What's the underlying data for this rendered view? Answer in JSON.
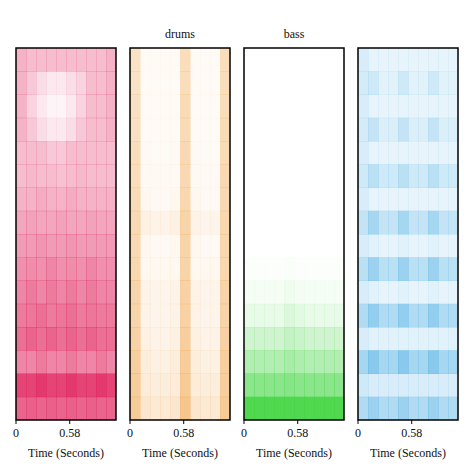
{
  "chart_data": [
    {
      "type": "heatmap",
      "color": "#e0245e",
      "xlabel": "Time (Seconds)",
      "xlim": [
        0,
        1.08
      ],
      "xticks": [
        0,
        0.58
      ],
      "tick_labels": "x",
      "cells": [
        [
          0.35,
          0.3,
          0.3,
          0.3,
          0.3,
          0.3,
          0.3,
          0.3,
          0.3,
          0.35
        ],
        [
          0.35,
          0.25,
          0.15,
          0.1,
          0.1,
          0.15,
          0.2,
          0.3,
          0.3,
          0.35
        ],
        [
          0.35,
          0.2,
          0.1,
          0.05,
          0.05,
          0.1,
          0.2,
          0.3,
          0.3,
          0.35
        ],
        [
          0.35,
          0.25,
          0.15,
          0.1,
          0.1,
          0.15,
          0.25,
          0.3,
          0.3,
          0.35
        ],
        [
          0.3,
          0.3,
          0.3,
          0.25,
          0.25,
          0.3,
          0.3,
          0.3,
          0.3,
          0.3
        ],
        [
          0.3,
          0.32,
          0.3,
          0.3,
          0.28,
          0.3,
          0.32,
          0.3,
          0.3,
          0.3
        ],
        [
          0.35,
          0.35,
          0.38,
          0.35,
          0.35,
          0.38,
          0.35,
          0.35,
          0.35,
          0.35
        ],
        [
          0.4,
          0.42,
          0.4,
          0.4,
          0.42,
          0.4,
          0.4,
          0.42,
          0.4,
          0.4
        ],
        [
          0.45,
          0.45,
          0.48,
          0.45,
          0.45,
          0.48,
          0.45,
          0.45,
          0.45,
          0.45
        ],
        [
          0.5,
          0.52,
          0.5,
          0.55,
          0.5,
          0.52,
          0.5,
          0.55,
          0.5,
          0.5
        ],
        [
          0.55,
          0.6,
          0.55,
          0.6,
          0.55,
          0.6,
          0.55,
          0.6,
          0.55,
          0.55
        ],
        [
          0.6,
          0.62,
          0.65,
          0.6,
          0.62,
          0.65,
          0.6,
          0.62,
          0.6,
          0.6
        ],
        [
          0.65,
          0.7,
          0.65,
          0.7,
          0.65,
          0.7,
          0.65,
          0.7,
          0.65,
          0.65
        ],
        [
          0.55,
          0.55,
          0.6,
          0.55,
          0.55,
          0.6,
          0.55,
          0.55,
          0.6,
          0.55
        ],
        [
          0.85,
          0.85,
          0.9,
          0.85,
          0.85,
          0.9,
          0.85,
          0.85,
          0.9,
          0.85
        ],
        [
          0.7,
          0.72,
          0.7,
          0.72,
          0.7,
          0.72,
          0.7,
          0.72,
          0.7,
          0.7
        ]
      ]
    },
    {
      "type": "heatmap",
      "title": "drums",
      "color": "#f0a040",
      "xlabel": "Time (Seconds)",
      "xlim": [
        0,
        1.08
      ],
      "xticks": [
        0,
        0.58
      ],
      "tick_labels": "x",
      "cells": [
        [
          0.3,
          0.05,
          0.05,
          0.05,
          0.05,
          0.35,
          0.05,
          0.05,
          0.05,
          0.35
        ],
        [
          0.3,
          0.05,
          0.05,
          0.05,
          0.05,
          0.35,
          0.05,
          0.05,
          0.05,
          0.35
        ],
        [
          0.32,
          0.05,
          0.05,
          0.05,
          0.05,
          0.38,
          0.05,
          0.05,
          0.05,
          0.35
        ],
        [
          0.32,
          0.05,
          0.05,
          0.05,
          0.05,
          0.38,
          0.05,
          0.05,
          0.05,
          0.38
        ],
        [
          0.35,
          0.06,
          0.05,
          0.05,
          0.06,
          0.4,
          0.06,
          0.05,
          0.05,
          0.38
        ],
        [
          0.35,
          0.06,
          0.06,
          0.06,
          0.06,
          0.4,
          0.06,
          0.06,
          0.06,
          0.4
        ],
        [
          0.38,
          0.08,
          0.06,
          0.06,
          0.08,
          0.42,
          0.08,
          0.06,
          0.06,
          0.4
        ],
        [
          0.4,
          0.15,
          0.12,
          0.12,
          0.15,
          0.45,
          0.12,
          0.1,
          0.1,
          0.42
        ],
        [
          0.4,
          0.08,
          0.06,
          0.06,
          0.08,
          0.45,
          0.08,
          0.06,
          0.06,
          0.42
        ],
        [
          0.42,
          0.08,
          0.08,
          0.08,
          0.08,
          0.45,
          0.08,
          0.08,
          0.08,
          0.42
        ],
        [
          0.45,
          0.12,
          0.1,
          0.1,
          0.12,
          0.48,
          0.12,
          0.1,
          0.1,
          0.45
        ],
        [
          0.45,
          0.12,
          0.1,
          0.1,
          0.12,
          0.48,
          0.12,
          0.1,
          0.1,
          0.45
        ],
        [
          0.48,
          0.15,
          0.12,
          0.12,
          0.15,
          0.5,
          0.15,
          0.12,
          0.12,
          0.48
        ],
        [
          0.5,
          0.18,
          0.15,
          0.15,
          0.18,
          0.52,
          0.18,
          0.15,
          0.15,
          0.5
        ],
        [
          0.52,
          0.2,
          0.18,
          0.18,
          0.2,
          0.55,
          0.2,
          0.18,
          0.18,
          0.5
        ],
        [
          0.55,
          0.25,
          0.22,
          0.22,
          0.25,
          0.6,
          0.25,
          0.22,
          0.22,
          0.55
        ]
      ]
    },
    {
      "type": "heatmap",
      "title": "bass",
      "color": "#3ed43e",
      "xlabel": "Time (Seconds)",
      "xlim": [
        0,
        1.08
      ],
      "xticks": [
        0,
        0.58
      ],
      "tick_labels": "x",
      "cells": [
        [
          0,
          0,
          0,
          0,
          0,
          0,
          0,
          0,
          0,
          0
        ],
        [
          0,
          0,
          0,
          0,
          0,
          0,
          0,
          0,
          0,
          0
        ],
        [
          0,
          0,
          0,
          0,
          0,
          0,
          0,
          0,
          0,
          0
        ],
        [
          0,
          0,
          0,
          0,
          0,
          0,
          0,
          0,
          0,
          0
        ],
        [
          0,
          0,
          0,
          0,
          0,
          0,
          0,
          0,
          0,
          0
        ],
        [
          0,
          0,
          0,
          0,
          0,
          0,
          0,
          0,
          0,
          0
        ],
        [
          0,
          0,
          0,
          0,
          0,
          0,
          0,
          0,
          0,
          0
        ],
        [
          0,
          0,
          0,
          0,
          0,
          0,
          0,
          0,
          0,
          0
        ],
        [
          0,
          0,
          0,
          0,
          0,
          0,
          0,
          0,
          0,
          0
        ],
        [
          0.02,
          0.02,
          0.02,
          0.02,
          0.03,
          0.02,
          0.02,
          0.02,
          0.02,
          0.02
        ],
        [
          0.05,
          0.05,
          0.05,
          0.05,
          0.08,
          0.06,
          0.05,
          0.05,
          0.05,
          0.05
        ],
        [
          0.12,
          0.12,
          0.12,
          0.12,
          0.18,
          0.15,
          0.12,
          0.12,
          0.12,
          0.12
        ],
        [
          0.25,
          0.25,
          0.25,
          0.25,
          0.3,
          0.28,
          0.25,
          0.25,
          0.25,
          0.25
        ],
        [
          0.4,
          0.4,
          0.4,
          0.4,
          0.45,
          0.42,
          0.4,
          0.4,
          0.4,
          0.4
        ],
        [
          0.6,
          0.6,
          0.6,
          0.6,
          0.62,
          0.6,
          0.6,
          0.6,
          0.6,
          0.6
        ],
        [
          0.9,
          0.9,
          0.9,
          0.9,
          0.9,
          0.9,
          0.9,
          0.9,
          0.9,
          0.9
        ]
      ]
    },
    {
      "type": "heatmap",
      "color": "#3aa6e0",
      "xlabel": "Time (Seconds)",
      "xlim": [
        0,
        1.08
      ],
      "xticks": [
        0,
        0.58
      ],
      "tick_labels": "x",
      "cells": [
        [
          0.2,
          0.12,
          0.12,
          0.12,
          0.12,
          0.12,
          0.12,
          0.12,
          0.12,
          0.12
        ],
        [
          0.22,
          0.25,
          0.15,
          0.15,
          0.25,
          0.15,
          0.15,
          0.25,
          0.15,
          0.15
        ],
        [
          0.2,
          0.12,
          0.12,
          0.12,
          0.12,
          0.12,
          0.12,
          0.12,
          0.12,
          0.12
        ],
        [
          0.22,
          0.3,
          0.18,
          0.18,
          0.3,
          0.18,
          0.18,
          0.3,
          0.18,
          0.18
        ],
        [
          0.2,
          0.12,
          0.12,
          0.12,
          0.12,
          0.12,
          0.12,
          0.12,
          0.12,
          0.12
        ],
        [
          0.25,
          0.35,
          0.25,
          0.25,
          0.35,
          0.25,
          0.25,
          0.35,
          0.25,
          0.25
        ],
        [
          0.2,
          0.12,
          0.12,
          0.12,
          0.12,
          0.12,
          0.12,
          0.12,
          0.12,
          0.12
        ],
        [
          0.3,
          0.45,
          0.3,
          0.3,
          0.45,
          0.3,
          0.3,
          0.45,
          0.3,
          0.3
        ],
        [
          0.2,
          0.15,
          0.12,
          0.12,
          0.15,
          0.12,
          0.12,
          0.15,
          0.12,
          0.12
        ],
        [
          0.35,
          0.5,
          0.35,
          0.35,
          0.5,
          0.35,
          0.35,
          0.5,
          0.35,
          0.35
        ],
        [
          0.2,
          0.15,
          0.12,
          0.12,
          0.15,
          0.12,
          0.12,
          0.15,
          0.12,
          0.12
        ],
        [
          0.4,
          0.55,
          0.4,
          0.4,
          0.55,
          0.4,
          0.4,
          0.55,
          0.4,
          0.4
        ],
        [
          0.2,
          0.15,
          0.15,
          0.15,
          0.15,
          0.15,
          0.15,
          0.15,
          0.15,
          0.15
        ],
        [
          0.45,
          0.6,
          0.45,
          0.45,
          0.6,
          0.45,
          0.45,
          0.6,
          0.45,
          0.45
        ],
        [
          0.25,
          0.2,
          0.2,
          0.2,
          0.2,
          0.2,
          0.2,
          0.2,
          0.2,
          0.2
        ],
        [
          0.4,
          0.5,
          0.4,
          0.4,
          0.5,
          0.4,
          0.4,
          0.5,
          0.4,
          0.4
        ]
      ]
    }
  ]
}
